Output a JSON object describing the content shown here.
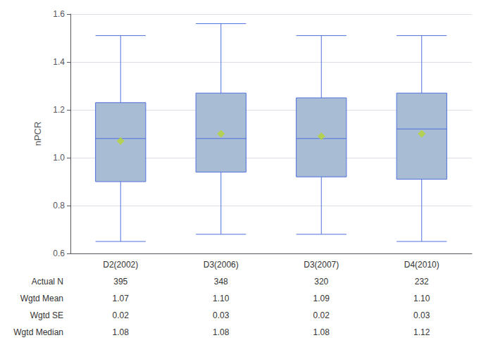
{
  "chart_data": {
    "type": "box",
    "ylabel": "nPCR",
    "categories": [
      "D2(2002)",
      "D3(2006)",
      "D3(2007)",
      "D4(2010)"
    ],
    "boxes": [
      {
        "whisker_low": 0.65,
        "q1": 0.9,
        "median": 1.08,
        "q3": 1.23,
        "whisker_high": 1.51,
        "mean": 1.07
      },
      {
        "whisker_low": 0.68,
        "q1": 0.94,
        "median": 1.08,
        "q3": 1.27,
        "whisker_high": 1.56,
        "mean": 1.1
      },
      {
        "whisker_low": 0.68,
        "q1": 0.92,
        "median": 1.08,
        "q3": 1.25,
        "whisker_high": 1.51,
        "mean": 1.09
      },
      {
        "whisker_low": 0.65,
        "q1": 0.91,
        "median": 1.12,
        "q3": 1.27,
        "whisker_high": 1.51,
        "mean": 1.1
      }
    ],
    "table_rows": [
      {
        "label": "Actual N",
        "values": [
          "395",
          "348",
          "320",
          "232"
        ]
      },
      {
        "label": "Wgtd Mean",
        "values": [
          "1.07",
          "1.10",
          "1.09",
          "1.10"
        ]
      },
      {
        "label": "Wgtd SE",
        "values": [
          "0.02",
          "0.03",
          "0.02",
          "0.03"
        ]
      },
      {
        "label": "Wgtd Median",
        "values": [
          "1.08",
          "1.08",
          "1.08",
          "1.12"
        ]
      }
    ],
    "color": "#a8bcd4",
    "marker": "diamond",
    "ylim": [
      0.6,
      1.6
    ],
    "yticks": [
      0.6,
      0.8,
      {
        "value": 1.0,
        "label": "1.0"
      },
      1.2,
      1.4,
      1.6
    ],
    "grid": true
  }
}
